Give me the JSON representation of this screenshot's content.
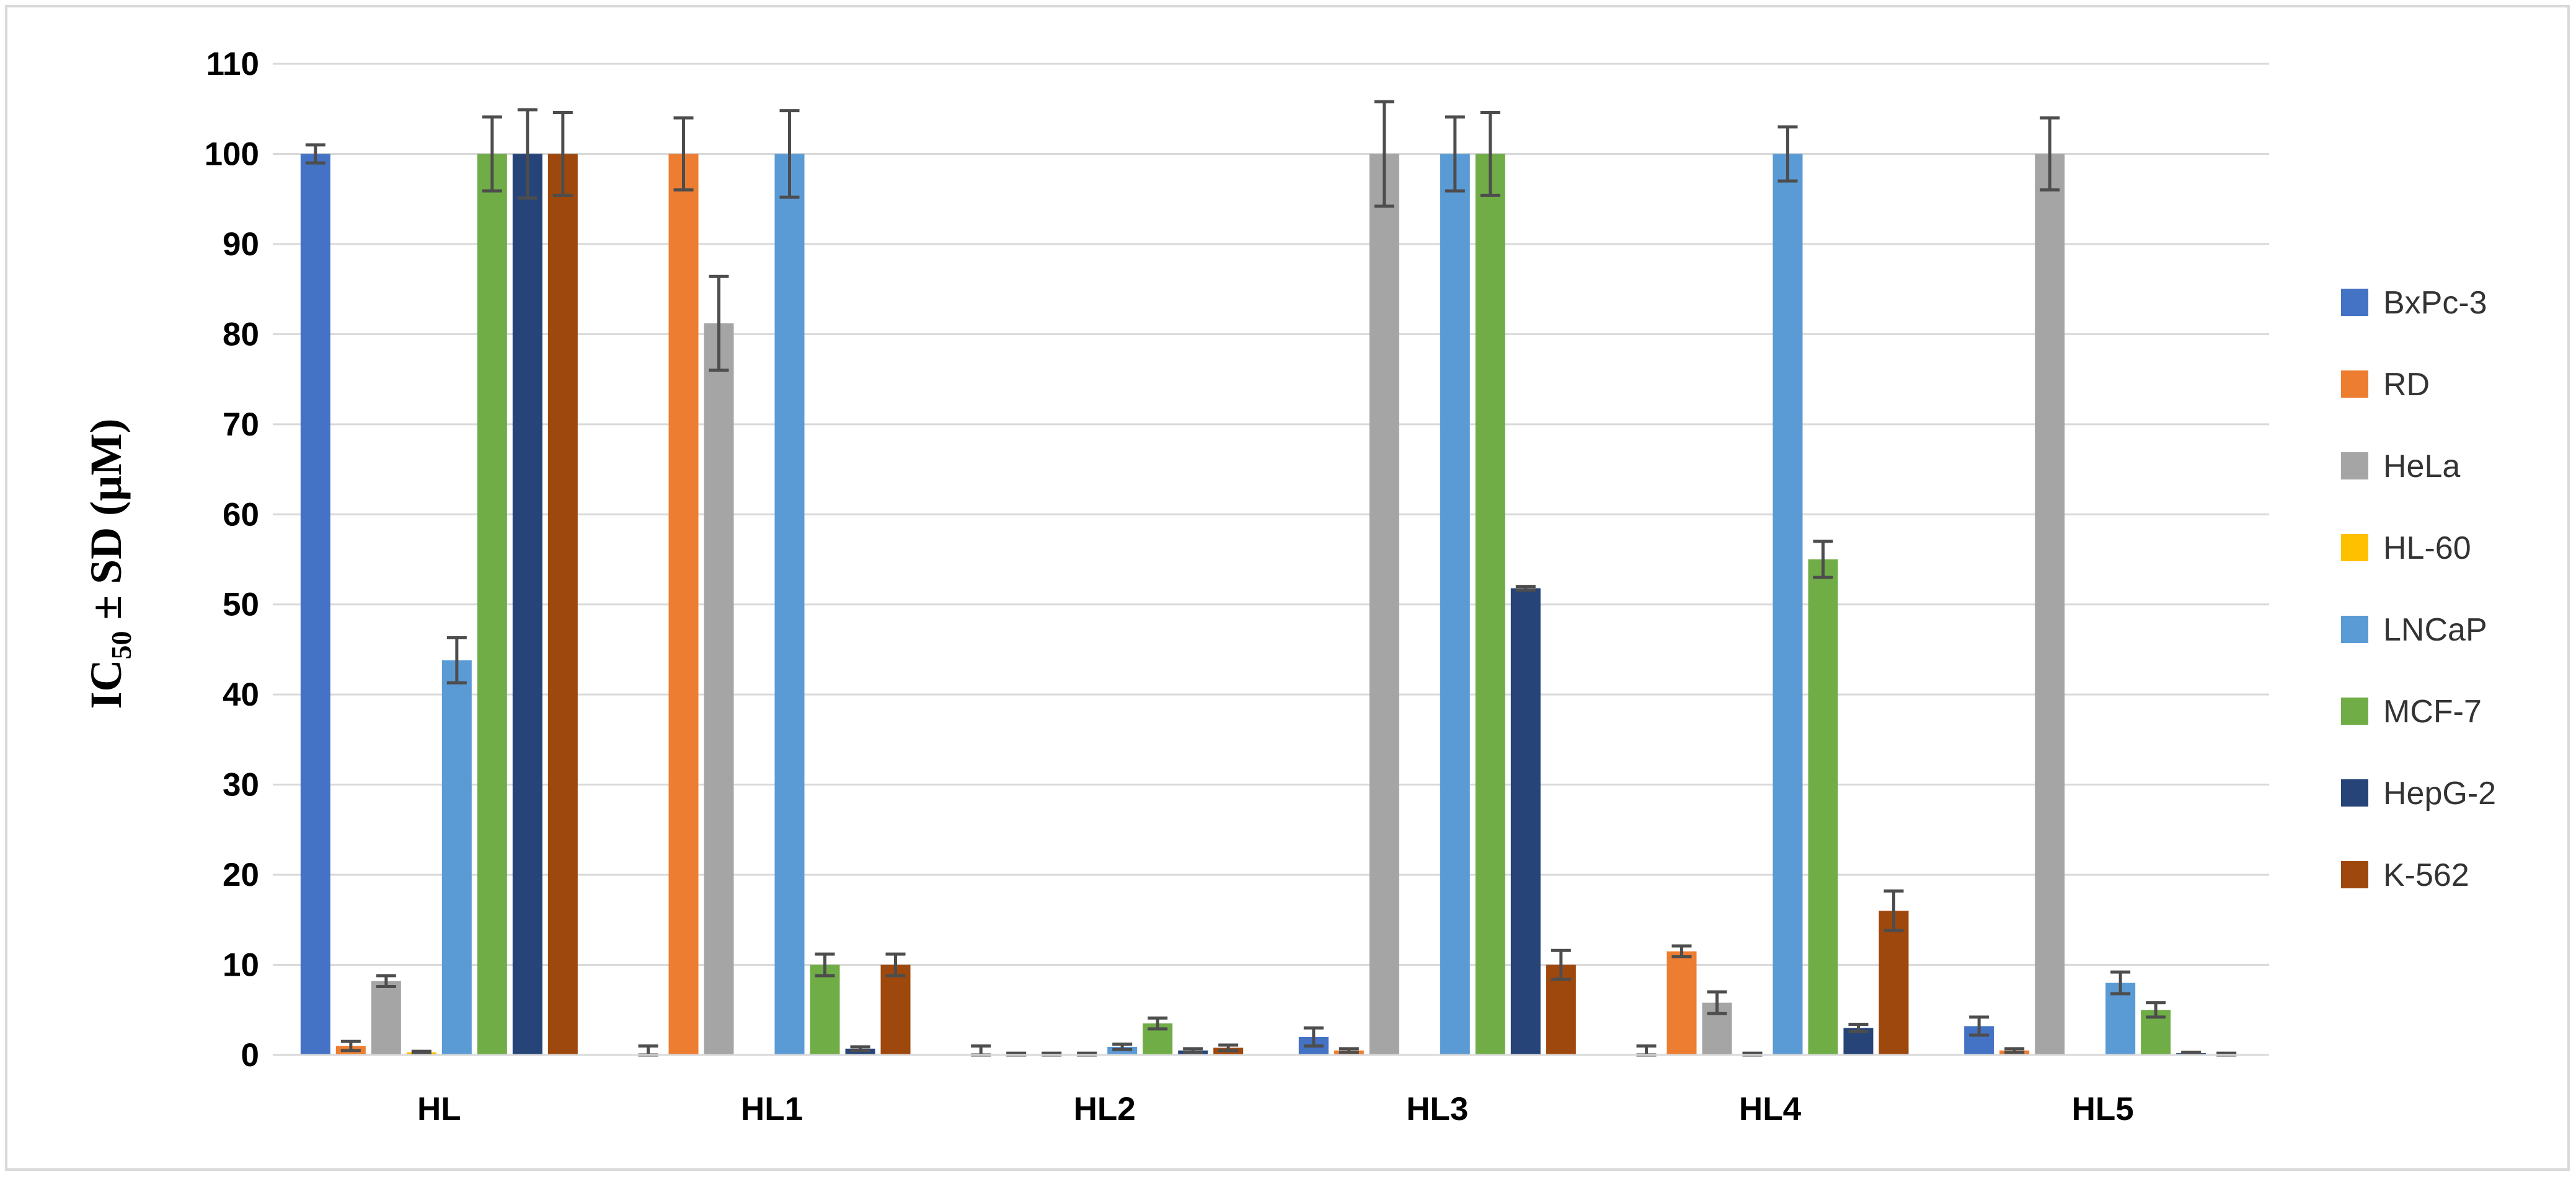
{
  "chart_data": {
    "type": "bar",
    "categories": [
      "HL",
      "HL1",
      "HL2",
      "HL3",
      "HL4",
      "HL5"
    ],
    "ylabel_main": "IC",
    "ylabel_sub": "50",
    "ylabel_rest": " ± SD (µM)",
    "ylim": [
      0,
      110
    ],
    "yticks": [
      "0",
      "10",
      "20",
      "30",
      "40",
      "50",
      "60",
      "70",
      "80",
      "90",
      "100",
      "110"
    ],
    "grid": "horizontal",
    "legend_position": "right",
    "series": [
      {
        "name": "BxPc-3",
        "color": "#4472c4",
        "values": [
          100,
          0,
          0,
          2,
          0,
          3.2
        ],
        "errors": [
          1,
          1,
          1,
          1,
          1,
          1
        ]
      },
      {
        "name": "RD",
        "color": "#ed7d31",
        "values": [
          1,
          100,
          0,
          0.5,
          11.5,
          0.5
        ],
        "errors": [
          0.5,
          4,
          0.2,
          0.2,
          0.6,
          0.2
        ]
      },
      {
        "name": "HeLa",
        "color": "#a5a5a5",
        "values": [
          8.2,
          81.2,
          0.1,
          100,
          5.8,
          100
        ],
        "errors": [
          0.6,
          5.2,
          0.1,
          5.8,
          1.2,
          4
        ]
      },
      {
        "name": "HL-60",
        "color": "#ffc000",
        "values": [
          0.3,
          0,
          0.1,
          0,
          0.1,
          0
        ],
        "errors": [
          0.1,
          0,
          0.1,
          0,
          0.1,
          0
        ]
      },
      {
        "name": "LNCaP",
        "color": "#5b9bd5",
        "values": [
          43.8,
          100,
          0.9,
          100,
          100,
          8
        ],
        "errors": [
          2.5,
          4.8,
          0.3,
          4.1,
          3,
          1.2
        ]
      },
      {
        "name": "MCF-7",
        "color": "#70ad47",
        "values": [
          100,
          10,
          3.5,
          100,
          55,
          5
        ],
        "errors": [
          4.1,
          1.2,
          0.6,
          4.6,
          2,
          0.8
        ]
      },
      {
        "name": "HepG-2",
        "color": "#264478",
        "values": [
          100,
          0.7,
          0.5,
          51.8,
          3,
          0.2
        ],
        "errors": [
          4.9,
          0.2,
          0.2,
          0.2,
          0.4,
          0.1
        ]
      },
      {
        "name": "K-562",
        "color": "#9e480e",
        "values": [
          100,
          10,
          0.8,
          10,
          16,
          0.1
        ],
        "errors": [
          4.6,
          1.2,
          0.3,
          1.6,
          2.2,
          0.1
        ]
      }
    ]
  }
}
